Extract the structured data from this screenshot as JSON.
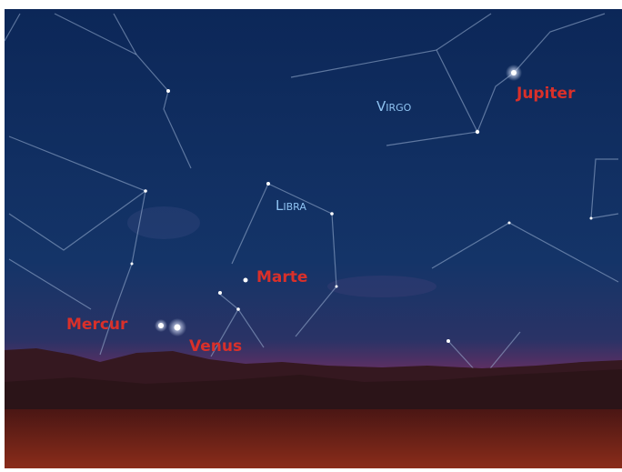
{
  "constellations": [
    {
      "label": "Virgo"
    },
    {
      "label": "Libra"
    }
  ],
  "planets": [
    {
      "label": "Jupiter"
    },
    {
      "label": "Marte"
    },
    {
      "label": "Mercur"
    },
    {
      "label": "Venus"
    }
  ]
}
